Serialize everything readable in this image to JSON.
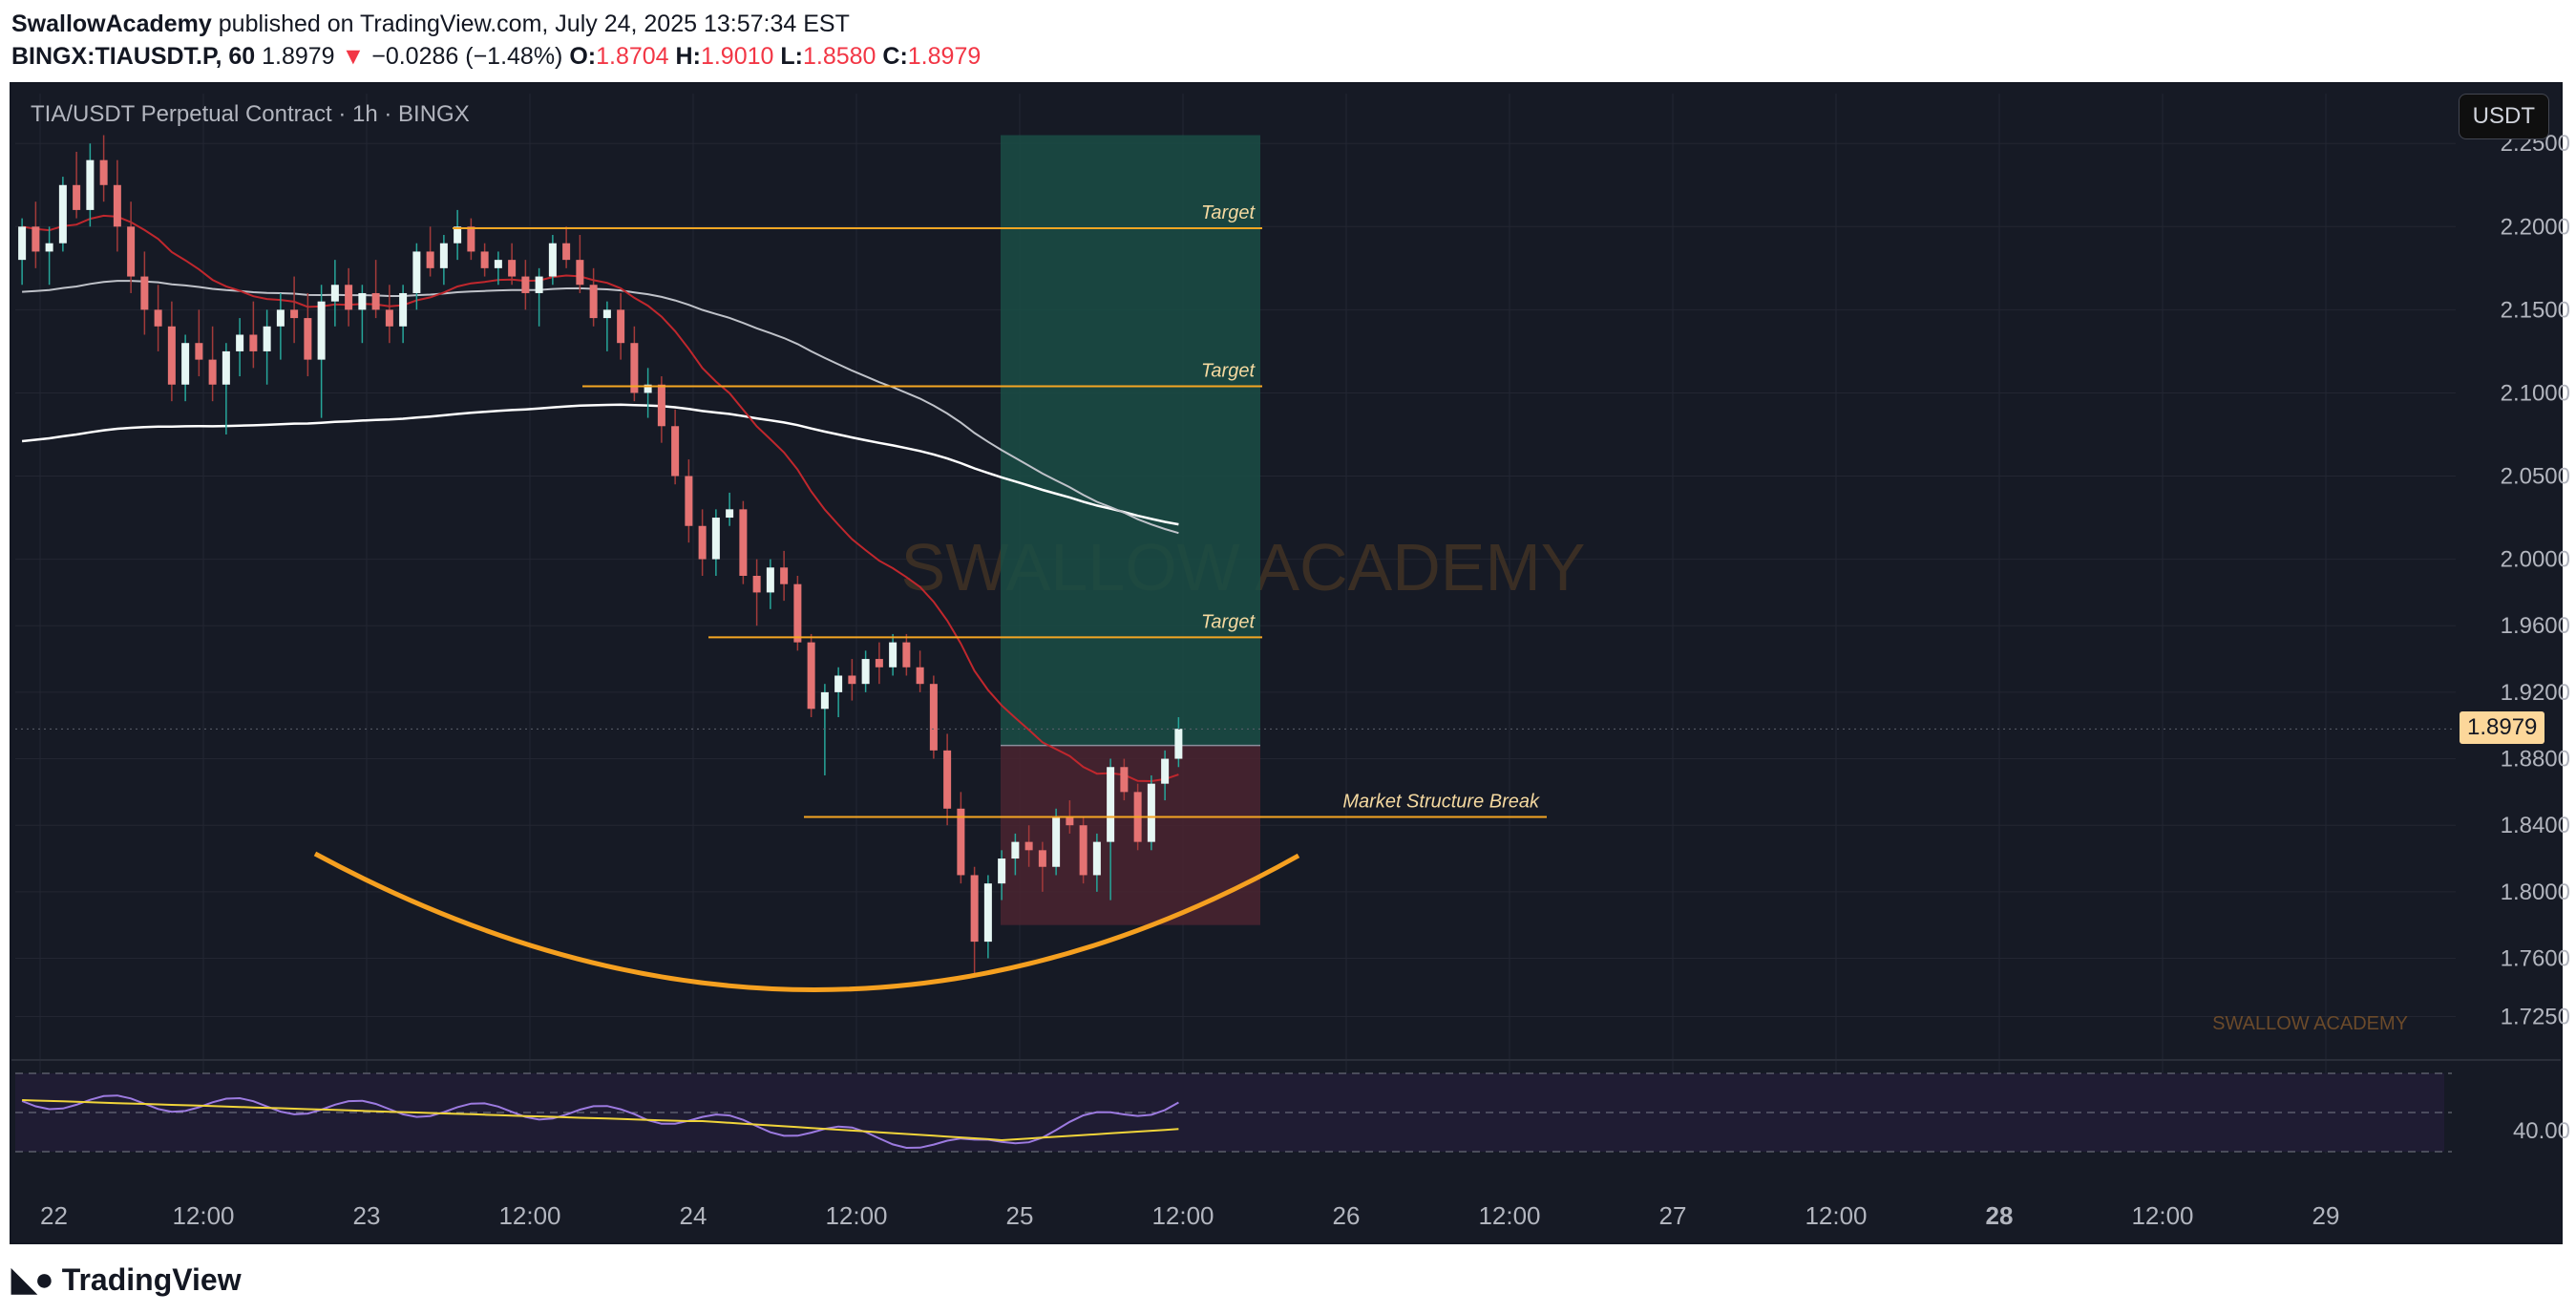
{
  "header": {
    "author": "SwallowAcademy",
    "published_text": "published on TradingView.com, July 24, 2025 13:57:34 EST",
    "symbol": "BINGX:TIAUSDT.P, 60",
    "last": "1.8979",
    "arrow": "▼",
    "change": "−0.0286 (−1.48%)",
    "o_label": "O:",
    "o": "1.8704",
    "h_label": "H:",
    "h": "1.9010",
    "l_label": "L:",
    "l": "1.8580",
    "c_label": "C:",
    "c": "1.8979"
  },
  "chart": {
    "symbol_title": "TIA/USDT Perpetual Contract · 1h · BINGX",
    "currency": "USDT",
    "current_price_label": "1.8979",
    "watermark": "SWALLOW ACADEMY",
    "corner_watermark": "SWALLOW ACADEMY",
    "rsi_label": "40.00"
  },
  "footer": {
    "brand": "TradingView"
  },
  "colors": {
    "background": "#161a25",
    "up": "#e6f7f4",
    "down": "#e57373",
    "target_line": "#f5a623",
    "profit_zone": "#1a4d45",
    "loss_zone": "#4a2430",
    "rsi_line": "#9c7ae0",
    "rsi_ma": "#f0d43a"
  },
  "chart_data": {
    "type": "candlestick",
    "price_axis": {
      "min": 1.7,
      "max": 2.28,
      "ticks": [
        "2.2500",
        "2.2000",
        "2.1500",
        "2.1000",
        "2.0500",
        "2.0000",
        "1.9600",
        "1.9200",
        "1.8800",
        "1.8400",
        "1.8000",
        "1.7600",
        "1.7250"
      ]
    },
    "time_axis": [
      "22",
      "12:00",
      "23",
      "12:00",
      "24",
      "12:00",
      "25",
      "12:00",
      "26",
      "12:00",
      "27",
      "12:00",
      "28",
      "12:00",
      "29"
    ],
    "ohlc": [
      [
        2.18,
        2.205,
        2.165,
        2.2
      ],
      [
        2.2,
        2.215,
        2.175,
        2.185
      ],
      [
        2.185,
        2.2,
        2.165,
        2.19
      ],
      [
        2.19,
        2.23,
        2.185,
        2.225
      ],
      [
        2.225,
        2.245,
        2.205,
        2.21
      ],
      [
        2.21,
        2.25,
        2.2,
        2.24
      ],
      [
        2.24,
        2.255,
        2.215,
        2.225
      ],
      [
        2.225,
        2.24,
        2.185,
        2.2
      ],
      [
        2.2,
        2.215,
        2.16,
        2.17
      ],
      [
        2.17,
        2.185,
        2.135,
        2.15
      ],
      [
        2.15,
        2.165,
        2.125,
        2.14
      ],
      [
        2.14,
        2.155,
        2.095,
        2.105
      ],
      [
        2.105,
        2.135,
        2.095,
        2.13
      ],
      [
        2.13,
        2.15,
        2.11,
        2.12
      ],
      [
        2.12,
        2.14,
        2.095,
        2.105
      ],
      [
        2.105,
        2.13,
        2.075,
        2.125
      ],
      [
        2.125,
        2.145,
        2.11,
        2.135
      ],
      [
        2.135,
        2.155,
        2.115,
        2.125
      ],
      [
        2.125,
        2.15,
        2.105,
        2.14
      ],
      [
        2.14,
        2.16,
        2.12,
        2.15
      ],
      [
        2.15,
        2.17,
        2.13,
        2.145
      ],
      [
        2.145,
        2.16,
        2.11,
        2.12
      ],
      [
        2.12,
        2.165,
        2.085,
        2.155
      ],
      [
        2.155,
        2.18,
        2.14,
        2.165
      ],
      [
        2.165,
        2.175,
        2.14,
        2.15
      ],
      [
        2.15,
        2.165,
        2.13,
        2.16
      ],
      [
        2.16,
        2.18,
        2.145,
        2.15
      ],
      [
        2.15,
        2.165,
        2.13,
        2.14
      ],
      [
        2.14,
        2.165,
        2.13,
        2.16
      ],
      [
        2.16,
        2.19,
        2.15,
        2.185
      ],
      [
        2.185,
        2.2,
        2.17,
        2.175
      ],
      [
        2.175,
        2.195,
        2.165,
        2.19
      ],
      [
        2.19,
        2.21,
        2.18,
        2.2
      ],
      [
        2.2,
        2.205,
        2.18,
        2.185
      ],
      [
        2.185,
        2.19,
        2.17,
        2.175
      ],
      [
        2.175,
        2.185,
        2.165,
        2.18
      ],
      [
        2.18,
        2.19,
        2.165,
        2.17
      ],
      [
        2.17,
        2.18,
        2.15,
        2.16
      ],
      [
        2.16,
        2.175,
        2.14,
        2.17
      ],
      [
        2.17,
        2.195,
        2.165,
        2.19
      ],
      [
        2.19,
        2.2,
        2.175,
        2.18
      ],
      [
        2.18,
        2.195,
        2.16,
        2.165
      ],
      [
        2.165,
        2.175,
        2.14,
        2.145
      ],
      [
        2.145,
        2.155,
        2.125,
        2.15
      ],
      [
        2.15,
        2.16,
        2.12,
        2.13
      ],
      [
        2.13,
        2.14,
        2.095,
        2.1
      ],
      [
        2.1,
        2.115,
        2.085,
        2.105
      ],
      [
        2.105,
        2.11,
        2.07,
        2.08
      ],
      [
        2.08,
        2.09,
        2.045,
        2.05
      ],
      [
        2.05,
        2.06,
        2.01,
        2.02
      ],
      [
        2.02,
        2.03,
        1.99,
        2.0
      ],
      [
        2.0,
        2.03,
        1.99,
        2.025
      ],
      [
        2.025,
        2.04,
        2.02,
        2.03
      ],
      [
        2.03,
        2.035,
        1.985,
        1.99
      ],
      [
        1.99,
        2.0,
        1.96,
        1.98
      ],
      [
        1.98,
        2.0,
        1.97,
        1.995
      ],
      [
        1.995,
        2.005,
        1.975,
        1.985
      ],
      [
        1.985,
        1.99,
        1.945,
        1.95
      ],
      [
        1.95,
        1.955,
        1.905,
        1.91
      ],
      [
        1.91,
        1.925,
        1.87,
        1.92
      ],
      [
        1.92,
        1.935,
        1.905,
        1.93
      ],
      [
        1.93,
        1.94,
        1.915,
        1.925
      ],
      [
        1.925,
        1.945,
        1.92,
        1.94
      ],
      [
        1.94,
        1.95,
        1.925,
        1.935
      ],
      [
        1.935,
        1.955,
        1.93,
        1.95
      ],
      [
        1.95,
        1.955,
        1.93,
        1.935
      ],
      [
        1.935,
        1.945,
        1.92,
        1.925
      ],
      [
        1.925,
        1.93,
        1.88,
        1.885
      ],
      [
        1.885,
        1.895,
        1.84,
        1.85
      ],
      [
        1.85,
        1.86,
        1.805,
        1.81
      ],
      [
        1.81,
        1.815,
        1.75,
        1.77
      ],
      [
        1.77,
        1.81,
        1.76,
        1.805
      ],
      [
        1.805,
        1.825,
        1.795,
        1.82
      ],
      [
        1.82,
        1.835,
        1.81,
        1.83
      ],
      [
        1.83,
        1.84,
        1.815,
        1.825
      ],
      [
        1.825,
        1.83,
        1.8,
        1.815
      ],
      [
        1.815,
        1.85,
        1.81,
        1.845
      ],
      [
        1.845,
        1.855,
        1.835,
        1.84
      ],
      [
        1.84,
        1.845,
        1.805,
        1.81
      ],
      [
        1.81,
        1.835,
        1.8,
        1.83
      ],
      [
        1.83,
        1.88,
        1.795,
        1.875
      ],
      [
        1.875,
        1.88,
        1.855,
        1.86
      ],
      [
        1.86,
        1.865,
        1.825,
        1.83
      ],
      [
        1.83,
        1.87,
        1.825,
        1.865
      ],
      [
        1.865,
        1.885,
        1.855,
        1.88
      ],
      [
        1.88,
        1.905,
        1.875,
        1.898
      ]
    ],
    "annotations": [
      {
        "label": "Target",
        "price": 2.199
      },
      {
        "label": "Target",
        "price": 2.104
      },
      {
        "label": "Target",
        "price": 1.953
      },
      {
        "label": "Market Structure Break",
        "price": 1.845
      }
    ],
    "position": {
      "entry": 1.888,
      "take_profit": 2.255,
      "stop": 1.78
    },
    "indicators": [
      "EMA 21 (red/green)",
      "EMA 100 (grey)",
      "EMA 200 (white)",
      "RSI 14 + MA"
    ]
  }
}
